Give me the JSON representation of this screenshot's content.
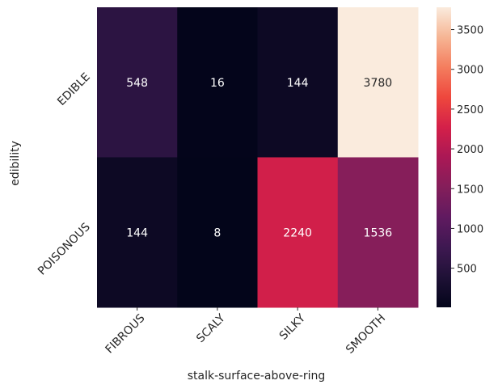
{
  "chart_data": {
    "type": "heatmap",
    "xlabel": "stalk-surface-above-ring",
    "ylabel": "edibility",
    "x_categories": [
      "FIBROUS",
      "SCALY",
      "SILKY",
      "SMOOTH"
    ],
    "y_categories": [
      "EDIBLE",
      "POISONOUS"
    ],
    "values": [
      [
        548,
        16,
        144,
        3780
      ],
      [
        144,
        8,
        2240,
        1536
      ]
    ],
    "colorscale": "rocket",
    "vmin": 8,
    "vmax": 3780,
    "colorbar_ticks": [
      500,
      1000,
      1500,
      2000,
      2500,
      3000,
      3500
    ],
    "annotations": true,
    "grid": false
  }
}
